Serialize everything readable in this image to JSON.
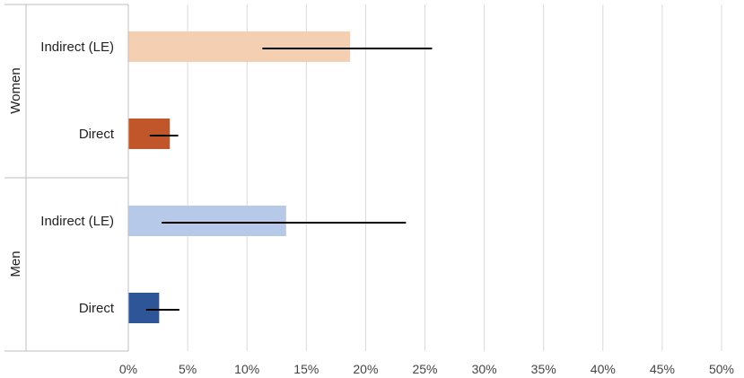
{
  "chart_data": {
    "type": "bar",
    "orientation": "horizontal",
    "xlim": [
      0,
      50
    ],
    "x_ticks": [
      "0%",
      "5%",
      "10%",
      "15%",
      "20%",
      "25%",
      "30%",
      "35%",
      "40%",
      "45%",
      "50%"
    ],
    "x_tick_values": [
      0,
      5,
      10,
      15,
      20,
      25,
      30,
      35,
      40,
      45,
      50
    ],
    "grid": "vertical",
    "groups": [
      {
        "label": "Women",
        "bars": [
          {
            "label": "Indirect (LE)",
            "value": 18.7,
            "error_low": 11.3,
            "error_high": 25.6,
            "color": "#f5cfb2"
          },
          {
            "label": "Direct",
            "value": 3.5,
            "error_low": 1.8,
            "error_high": 4.2,
            "color": "#c0562a"
          }
        ]
      },
      {
        "label": "Men",
        "bars": [
          {
            "label": "Indirect (LE)",
            "value": 13.3,
            "error_low": 2.8,
            "error_high": 23.4,
            "color": "#b7c9e8"
          },
          {
            "label": "Direct",
            "value": 2.6,
            "error_low": 1.5,
            "error_high": 4.3,
            "color": "#2d5597"
          }
        ]
      }
    ]
  }
}
